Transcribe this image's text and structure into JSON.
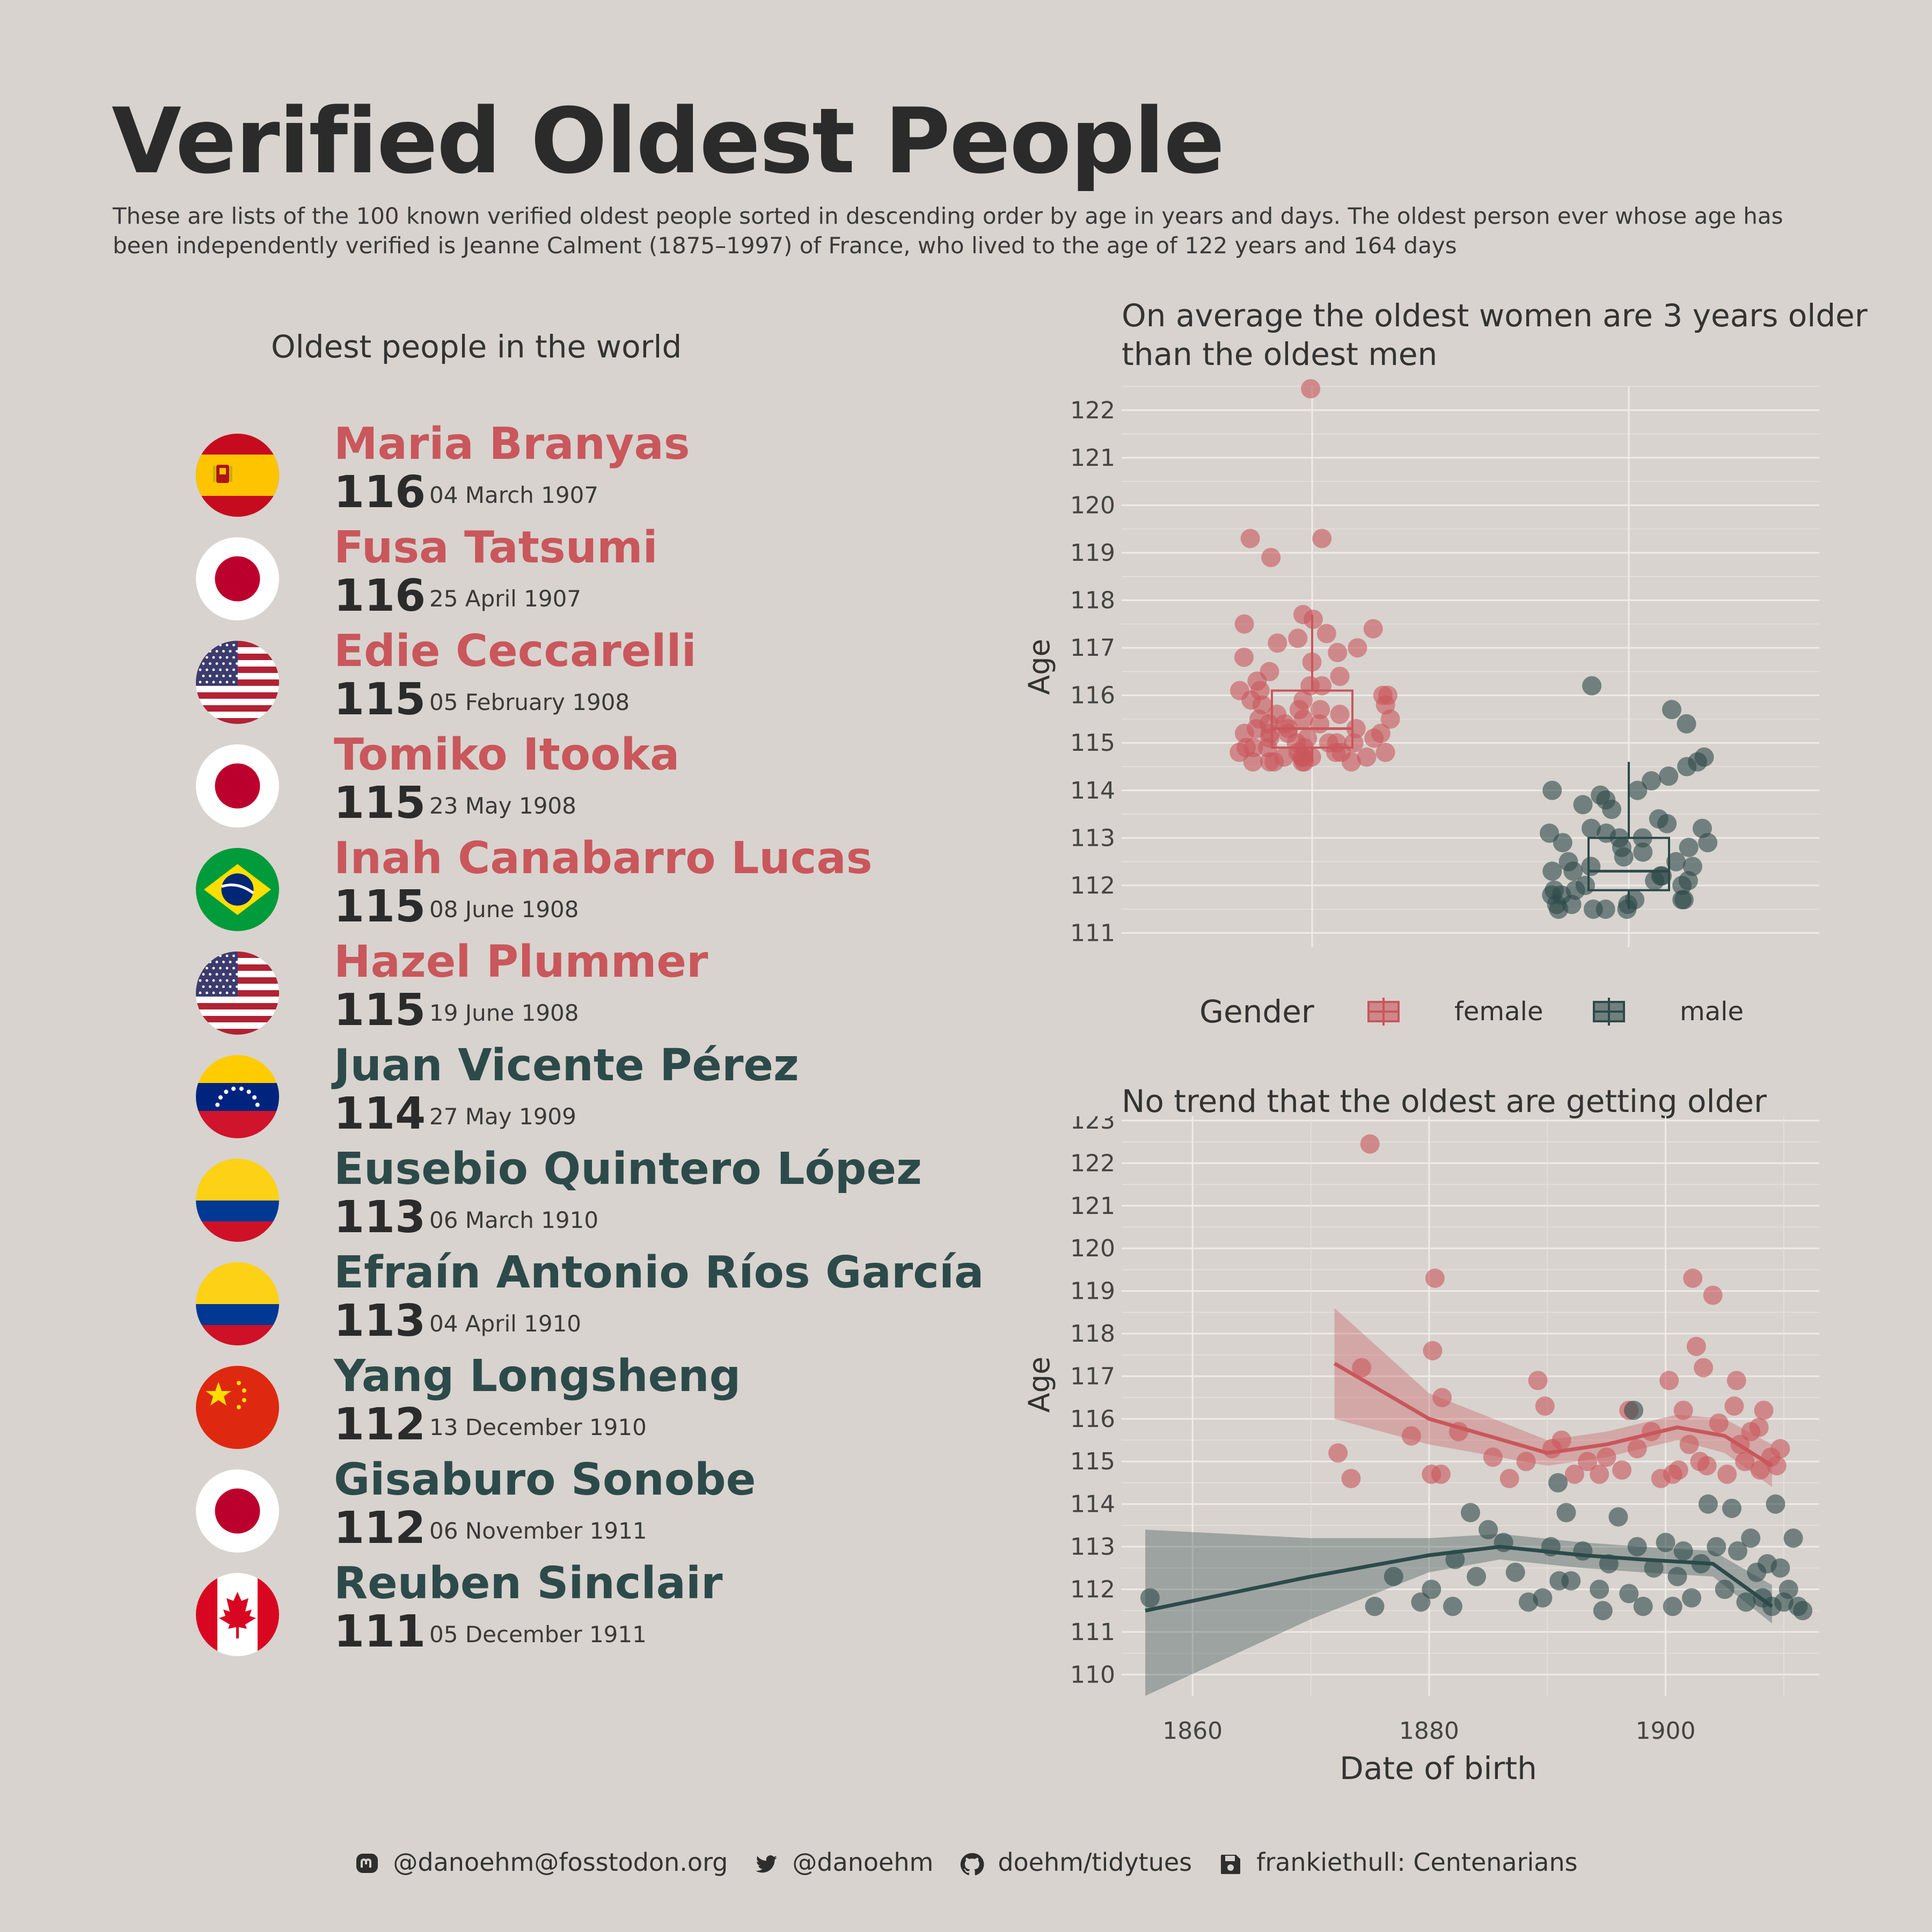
{
  "title": "Verified Oldest People",
  "subtitle": "These are lists of the 100 known verified oldest people sorted in descending order by age in years and days. The oldest person ever whose age has been independently verified is Jeanne Calment (1875–1997) of France, who lived to the age of 122 years and 164 days",
  "list_title": "Oldest people in the world",
  "colors": {
    "female": "#c9575c",
    "male": "#2d4a4a",
    "background": "#d8d3ce"
  },
  "people": [
    {
      "name": "Maria Branyas",
      "age": "116",
      "date": "04 March 1907",
      "gender": "female",
      "flag": "spain-flag-icon"
    },
    {
      "name": "Fusa Tatsumi",
      "age": "116",
      "date": "25 April 1907",
      "gender": "female",
      "flag": "japan-flag-icon"
    },
    {
      "name": "Edie Ceccarelli",
      "age": "115",
      "date": "05 February 1908",
      "gender": "female",
      "flag": "usa-flag-icon"
    },
    {
      "name": "Tomiko Itooka",
      "age": "115",
      "date": "23 May 1908",
      "gender": "female",
      "flag": "japan-flag-icon"
    },
    {
      "name": "Inah Canabarro Lucas",
      "age": "115",
      "date": "08 June 1908",
      "gender": "female",
      "flag": "brazil-flag-icon"
    },
    {
      "name": "Hazel Plummer",
      "age": "115",
      "date": "19 June 1908",
      "gender": "female",
      "flag": "usa-flag-icon"
    },
    {
      "name": "Juan Vicente Pérez",
      "age": "114",
      "date": "27 May 1909",
      "gender": "male",
      "flag": "venezuela-flag-icon"
    },
    {
      "name": "Eusebio Quintero López",
      "age": "113",
      "date": "06 March 1910",
      "gender": "male",
      "flag": "colombia-flag-icon"
    },
    {
      "name": "Efraín Antonio Ríos García",
      "age": "113",
      "date": "04 April 1910",
      "gender": "male",
      "flag": "colombia-flag-icon"
    },
    {
      "name": "Yang Longsheng",
      "age": "112",
      "date": "13 December 1910",
      "gender": "male",
      "flag": "china-flag-icon"
    },
    {
      "name": "Gisaburo Sonobe",
      "age": "112",
      "date": "06 November 1911",
      "gender": "male",
      "flag": "japan-flag-icon"
    },
    {
      "name": "Reuben Sinclair",
      "age": "111",
      "date": "05 December 1911",
      "gender": "male",
      "flag": "canada-flag-icon"
    }
  ],
  "chart_data": [
    {
      "type": "boxplot-jitter",
      "title": "On average the oldest women are 3 years older than the oldest men",
      "xlabel": "",
      "ylabel": "Age",
      "ylim": [
        110.7,
        122.5
      ],
      "yticks": [
        111,
        112,
        113,
        114,
        115,
        116,
        117,
        118,
        119,
        120,
        121,
        122
      ],
      "legend": {
        "title": "Gender",
        "entries": [
          "female",
          "male"
        ],
        "placement": "bottom"
      },
      "categories": [
        "female",
        "male"
      ],
      "series": [
        {
          "name": "female",
          "box": {
            "q1": 114.9,
            "median": 115.3,
            "q3": 116.1,
            "whisker_low": 114.6,
            "whisker_high": 117.7
          },
          "points": [
            122.45,
            119.3,
            119.3,
            118.9,
            117.7,
            117.6,
            117.5,
            117.4,
            117.3,
            117.2,
            117.1,
            117.0,
            116.9,
            116.8,
            116.7,
            116.5,
            116.4,
            116.3,
            116.2,
            116.2,
            116.1,
            116.1,
            116.0,
            116.0,
            115.9,
            115.9,
            115.8,
            115.8,
            115.7,
            115.7,
            115.6,
            115.6,
            115.5,
            115.5,
            115.5,
            115.4,
            115.4,
            115.4,
            115.3,
            115.3,
            115.3,
            115.2,
            115.2,
            115.2,
            115.2,
            115.1,
            115.1,
            115.1,
            115.0,
            115.0,
            115.0,
            115.0,
            114.9,
            114.9,
            114.9,
            114.9,
            114.8,
            114.8,
            114.8,
            114.8,
            114.8,
            114.7,
            114.7,
            114.7,
            114.7,
            114.7,
            114.6,
            114.6,
            114.6,
            114.6,
            114.6,
            114.6
          ]
        },
        {
          "name": "male",
          "box": {
            "q1": 111.9,
            "median": 112.3,
            "q3": 113.0,
            "whisker_low": 111.5,
            "whisker_high": 114.6
          },
          "points": [
            116.2,
            115.7,
            115.4,
            114.7,
            114.6,
            114.5,
            114.3,
            114.2,
            114.0,
            114.0,
            113.9,
            113.8,
            113.7,
            113.6,
            113.4,
            113.3,
            113.2,
            113.2,
            113.1,
            113.1,
            113.0,
            113.0,
            112.9,
            112.9,
            112.8,
            112.8,
            112.7,
            112.6,
            112.5,
            112.5,
            112.4,
            112.4,
            112.3,
            112.3,
            112.2,
            112.2,
            112.1,
            112.1,
            112.0,
            112.0,
            111.9,
            111.9,
            111.8,
            111.8,
            111.7,
            111.7,
            111.7,
            111.6,
            111.6,
            111.6,
            111.5,
            111.5,
            111.5,
            111.5
          ]
        }
      ]
    },
    {
      "type": "scatter",
      "title": "No trend that the oldest are getting older",
      "xlabel": "Date of birth",
      "ylabel": "Age",
      "xlim": [
        1854,
        1913
      ],
      "ylim": [
        109.5,
        123.1
      ],
      "xticks": [
        1860,
        1880,
        1900
      ],
      "yticks": [
        110,
        111,
        112,
        113,
        114,
        115,
        116,
        117,
        118,
        119,
        120,
        121,
        122,
        123
      ],
      "series": [
        {
          "name": "female",
          "points": [
            [
              1875.0,
              122.45
            ],
            [
              1880.5,
              119.3
            ],
            [
              1902.3,
              119.3
            ],
            [
              1904.0,
              118.9
            ],
            [
              1880.3,
              117.6
            ],
            [
              1902.6,
              117.7
            ],
            [
              1874.3,
              117.2
            ],
            [
              1889.2,
              116.9
            ],
            [
              1900.3,
              116.9
            ],
            [
              1903.2,
              117.2
            ],
            [
              1906.0,
              116.9
            ],
            [
              1881.1,
              116.5
            ],
            [
              1889.8,
              116.3
            ],
            [
              1896.9,
              116.2
            ],
            [
              1901.5,
              116.2
            ],
            [
              1905.8,
              116.3
            ],
            [
              1908.3,
              116.2
            ],
            [
              1878.5,
              115.6
            ],
            [
              1880.2,
              114.7
            ],
            [
              1881.0,
              114.7
            ],
            [
              1872.3,
              115.2
            ],
            [
              1873.4,
              114.6
            ],
            [
              1882.5,
              115.7
            ],
            [
              1885.4,
              115.1
            ],
            [
              1886.8,
              114.6
            ],
            [
              1888.2,
              115.0
            ],
            [
              1890.4,
              115.3
            ],
            [
              1892.3,
              114.7
            ],
            [
              1893.4,
              115.0
            ],
            [
              1895.0,
              115.1
            ],
            [
              1896.3,
              114.8
            ],
            [
              1897.6,
              115.3
            ],
            [
              1898.8,
              115.7
            ],
            [
              1899.6,
              114.6
            ],
            [
              1901.1,
              114.8
            ],
            [
              1902.0,
              115.4
            ],
            [
              1903.5,
              114.9
            ],
            [
              1904.5,
              115.9
            ],
            [
              1906.7,
              115.0
            ],
            [
              1907.2,
              115.7
            ],
            [
              1908.0,
              114.8
            ],
            [
              1908.9,
              115.1
            ],
            [
              1909.4,
              114.9
            ],
            [
              1891.2,
              115.5
            ],
            [
              1894.4,
              114.7
            ],
            [
              1900.6,
              114.7
            ],
            [
              1902.9,
              115.0
            ],
            [
              1905.2,
              114.7
            ],
            [
              1906.3,
              115.4
            ],
            [
              1907.9,
              115.8
            ],
            [
              1909.7,
              115.3
            ]
          ]
        },
        {
          "name": "male",
          "points": [
            [
              1856.4,
              111.8
            ],
            [
              1875.4,
              111.6
            ],
            [
              1877.0,
              112.3
            ],
            [
              1879.3,
              111.7
            ],
            [
              1880.2,
              112.0
            ],
            [
              1882.0,
              111.6
            ],
            [
              1882.2,
              112.7
            ],
            [
              1884.0,
              112.3
            ],
            [
              1885.0,
              113.4
            ],
            [
              1886.3,
              113.1
            ],
            [
              1887.3,
              112.4
            ],
            [
              1888.4,
              111.7
            ],
            [
              1889.6,
              111.8
            ],
            [
              1890.3,
              113.0
            ],
            [
              1890.9,
              114.5
            ],
            [
              1891.6,
              113.8
            ],
            [
              1892.0,
              112.2
            ],
            [
              1893.0,
              112.9
            ],
            [
              1894.4,
              112.0
            ],
            [
              1895.2,
              112.6
            ],
            [
              1896.0,
              113.7
            ],
            [
              1896.9,
              111.9
            ],
            [
              1897.3,
              116.2
            ],
            [
              1897.6,
              113.0
            ],
            [
              1898.1,
              111.6
            ],
            [
              1899.0,
              112.5
            ],
            [
              1900.0,
              113.1
            ],
            [
              1900.6,
              111.6
            ],
            [
              1901.0,
              112.3
            ],
            [
              1901.5,
              112.9
            ],
            [
              1902.2,
              111.8
            ],
            [
              1903.0,
              112.6
            ],
            [
              1903.6,
              114.0
            ],
            [
              1904.3,
              113.0
            ],
            [
              1905.0,
              112.0
            ],
            [
              1905.6,
              113.9
            ],
            [
              1906.1,
              112.9
            ],
            [
              1906.8,
              111.7
            ],
            [
              1907.2,
              113.2
            ],
            [
              1907.7,
              112.4
            ],
            [
              1908.2,
              111.8
            ],
            [
              1908.6,
              112.6
            ],
            [
              1909.0,
              111.6
            ],
            [
              1909.3,
              114.0
            ],
            [
              1909.7,
              112.5
            ],
            [
              1910.0,
              111.7
            ],
            [
              1910.4,
              112.0
            ],
            [
              1910.8,
              113.2
            ],
            [
              1911.2,
              111.6
            ],
            [
              1911.6,
              111.5
            ],
            [
              1883.5,
              113.8
            ],
            [
              1891.0,
              112.2
            ],
            [
              1894.7,
              111.5
            ]
          ]
        }
      ],
      "trends": [
        {
          "name": "female",
          "x": [
            1872,
            1880,
            1890,
            1895,
            1901,
            1905,
            1909
          ],
          "y": [
            117.3,
            116.0,
            115.2,
            115.4,
            115.8,
            115.6,
            114.9
          ],
          "lower": [
            116.0,
            115.4,
            114.9,
            115.1,
            115.5,
            115.2,
            114.4
          ],
          "upper": [
            118.6,
            116.6,
            115.5,
            115.7,
            116.1,
            116.0,
            115.4
          ]
        },
        {
          "name": "male",
          "x": [
            1856,
            1870,
            1880,
            1886,
            1893,
            1898,
            1904,
            1909
          ],
          "y": [
            111.5,
            112.3,
            112.8,
            113.0,
            112.8,
            112.7,
            112.6,
            111.6
          ],
          "lower": [
            109.5,
            111.3,
            112.4,
            112.7,
            112.5,
            112.4,
            112.3,
            111.2
          ],
          "upper": [
            113.4,
            113.2,
            113.2,
            113.3,
            113.1,
            113.0,
            112.9,
            112.1
          ]
        }
      ]
    }
  ],
  "footer": [
    {
      "icon": "mastodon-icon",
      "text": "@danoehm@fosstodon.org"
    },
    {
      "icon": "twitter-icon",
      "text": "@danoehm"
    },
    {
      "icon": "github-icon",
      "text": "doehm/tidytues"
    },
    {
      "icon": "save-icon",
      "text": "frankiethull: Centenarians"
    }
  ]
}
